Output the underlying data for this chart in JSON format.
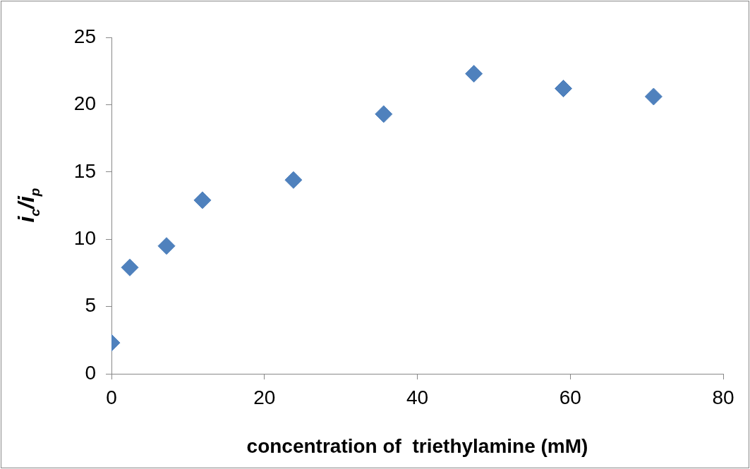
{
  "chart_data": {
    "type": "scatter",
    "xlabel": "concentration of  triethylamine (mM)",
    "ylabel": "i$_{c}$/i$_{p}$",
    "x": [
      0,
      2.4,
      7.2,
      11.9,
      23.8,
      35.6,
      47.4,
      59.1,
      70.9
    ],
    "series": [
      {
        "color": "#4f81bd",
        "values": [
          2.3,
          7.9,
          9.5,
          12.9,
          14.4,
          19.3,
          22.3,
          21.2,
          20.6
        ]
      }
    ],
    "xlim": [
      0,
      80
    ],
    "xticks": [
      0,
      20,
      40,
      60,
      80
    ],
    "ylim": [
      0,
      25
    ],
    "yticks": [
      0,
      5,
      10,
      15,
      20,
      25
    ],
    "grid": false,
    "legend": false,
    "marker": "diamond"
  }
}
